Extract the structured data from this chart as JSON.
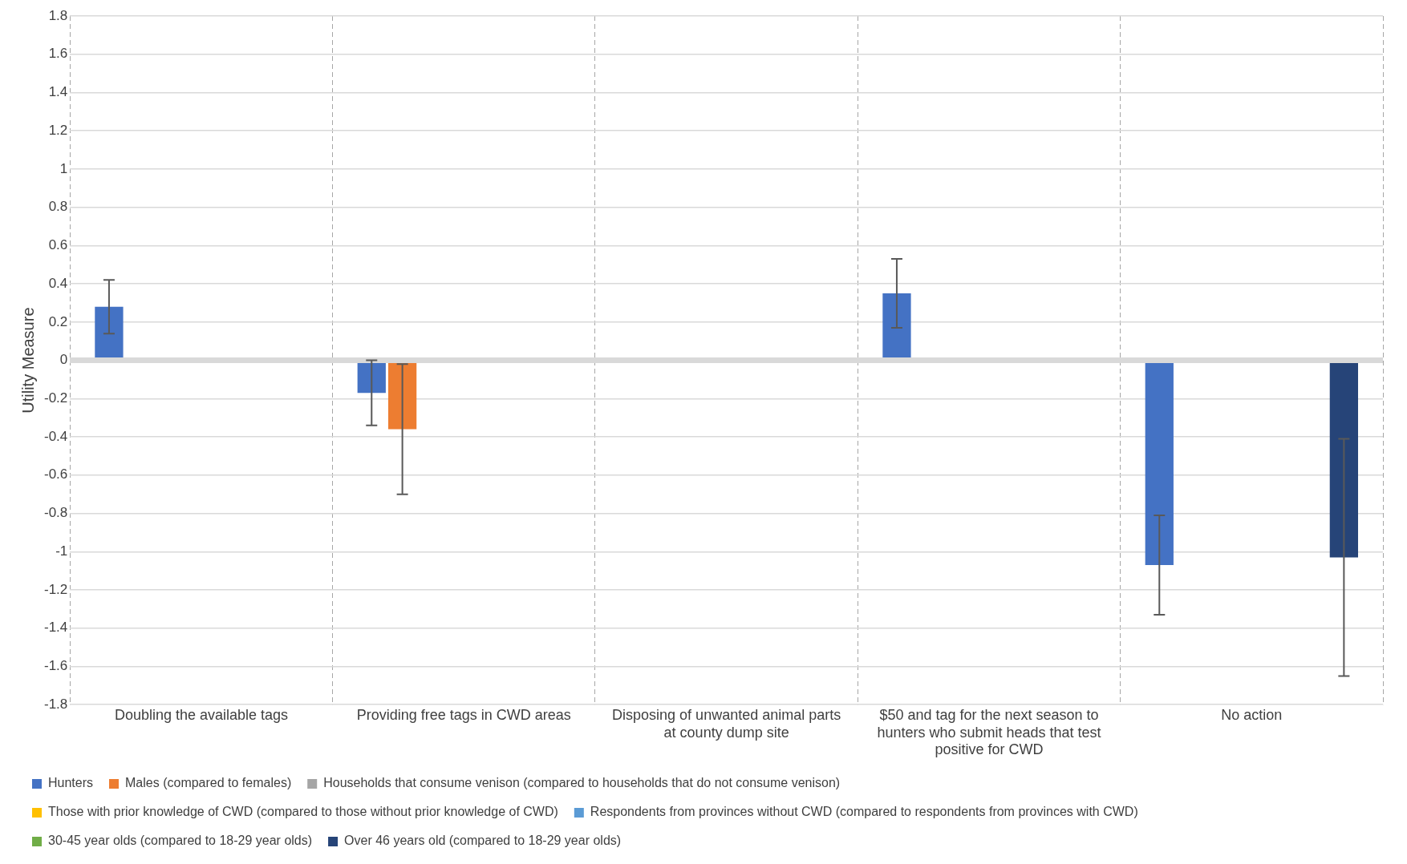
{
  "chart_data": {
    "type": "bar",
    "ylabel": "Utility Measure",
    "categories": [
      "Doubling the available tags",
      "Providing free tags in CWD areas",
      "Disposing of unwanted animal parts at county dump site",
      "$50 and tag for the next season to hunters who submit heads that test positive for CWD",
      "No action"
    ],
    "series": [
      {
        "name": "Hunters",
        "color": "#4472c4",
        "values": [
          0.28,
          -0.17,
          null,
          0.35,
          -1.07
        ],
        "errors": [
          0.14,
          0.17,
          null,
          0.18,
          0.26
        ]
      },
      {
        "name": "Males (compared to females)",
        "color": "#ed7d31",
        "values": [
          null,
          -0.36,
          null,
          null,
          null
        ],
        "errors": [
          null,
          0.34,
          null,
          null,
          null
        ]
      },
      {
        "name": "Households that consume venison (compared to households that do not consume venison)",
        "color": "#a5a5a5",
        "values": [
          null,
          null,
          null,
          null,
          null
        ]
      },
      {
        "name": "Those with prior knowledge of CWD (compared to those without prior knowledge of CWD)",
        "color": "#ffc000",
        "values": [
          null,
          null,
          null,
          null,
          null
        ]
      },
      {
        "name": "Respondents from provinces without CWD (compared to respondents from provinces with CWD)",
        "color": "#5b9bd5",
        "values": [
          null,
          null,
          null,
          null,
          null
        ]
      },
      {
        "name": "30-45 year olds (compared to 18-29 year olds)",
        "color": "#70ad47",
        "values": [
          null,
          null,
          null,
          null,
          null
        ]
      },
      {
        "name": "Over 46 years old (compared to 18-29 year olds)",
        "color": "#264478",
        "values": [
          null,
          null,
          null,
          null,
          -1.03
        ],
        "errors": [
          null,
          null,
          null,
          null,
          0.62
        ]
      }
    ],
    "ylim": [
      -1.8,
      1.8
    ],
    "yticks": [
      -1.8,
      -1.6,
      -1.4,
      -1.2,
      -1,
      -0.8,
      -0.6,
      -0.4,
      -0.2,
      0,
      0.2,
      0.4,
      0.6,
      0.8,
      1,
      1.2,
      1.4,
      1.6,
      1.8
    ],
    "grid": true,
    "legend": "bottom"
  }
}
